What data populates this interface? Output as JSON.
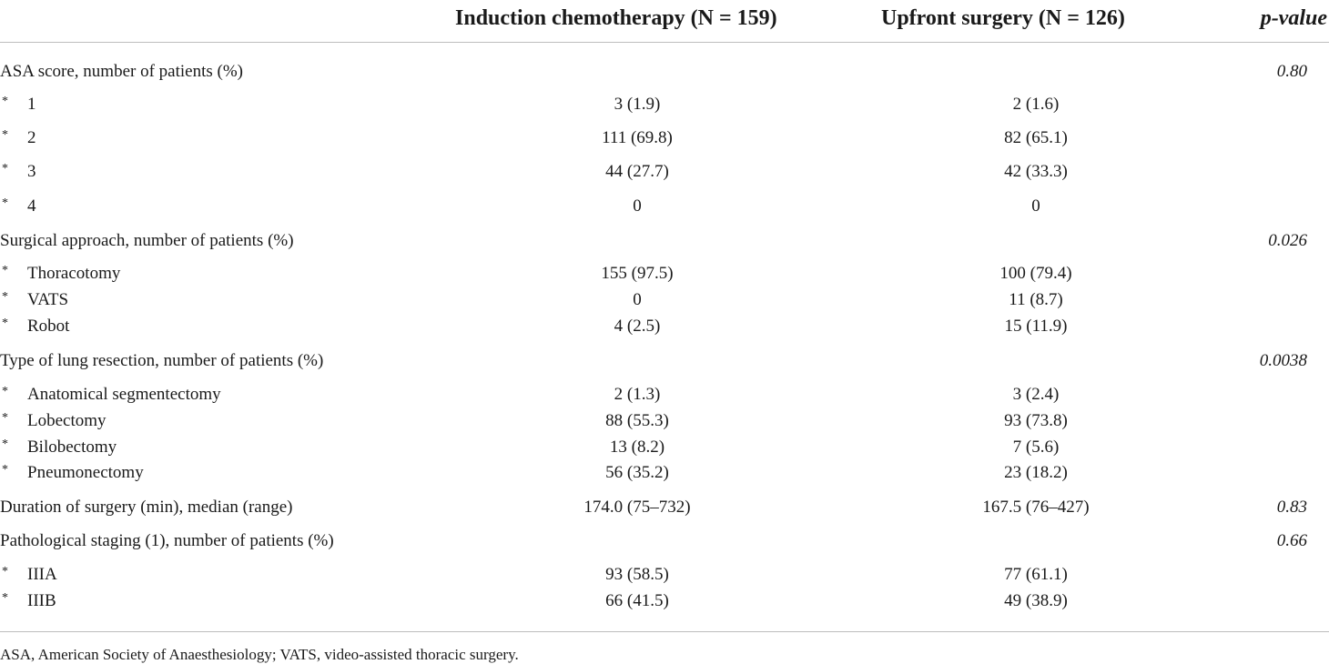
{
  "header": {
    "col1": "Induction chemotherapy (N = 159)",
    "col2": "Upfront surgery (N = 126)",
    "col3": "p-value"
  },
  "bullet": "*",
  "rows": [
    {
      "label": "ASA score, number of patients (%)",
      "p": "0.80"
    },
    {
      "label": "1",
      "v1": "3 (1.9)",
      "v2": "2 (1.6)"
    },
    {
      "label": "2",
      "v1": "111 (69.8)",
      "v2": "82 (65.1)"
    },
    {
      "label": "3",
      "v1": "44 (27.7)",
      "v2": "42 (33.3)"
    },
    {
      "label": "4",
      "v1": "0",
      "v2": "0"
    },
    {
      "label": "Surgical approach, number of patients (%)",
      "p": "0.026"
    },
    {
      "label": "Thoracotomy",
      "v1": "155 (97.5)",
      "v2": "100 (79.4)"
    },
    {
      "label": "VATS",
      "v1": "0",
      "v2": "11 (8.7)"
    },
    {
      "label": "Robot",
      "v1": "4 (2.5)",
      "v2": "15 (11.9)"
    },
    {
      "label": "Type of lung resection, number of patients (%)",
      "p": "0.0038"
    },
    {
      "label": "Anatomical segmentectomy",
      "v1": "2 (1.3)",
      "v2": "3 (2.4)"
    },
    {
      "label": "Lobectomy",
      "v1": "88 (55.3)",
      "v2": "93 (73.8)"
    },
    {
      "label": "Bilobectomy",
      "v1": "13 (8.2)",
      "v2": "7 (5.6)"
    },
    {
      "label": "Pneumonectomy",
      "v1": "56 (35.2)",
      "v2": "23 (18.2)"
    },
    {
      "label": "Duration of surgery (min), median (range)",
      "v1": "174.0 (75–732)",
      "v2": "167.5 (76–427)",
      "p": "0.83"
    },
    {
      "label": "Pathological staging (1), number of patients (%)",
      "p": "0.66"
    },
    {
      "label": "IIIA",
      "v1": "93 (58.5)",
      "v2": "77 (61.1)"
    },
    {
      "label": "IIIB",
      "v1": "66 (41.5)",
      "v2": "49 (38.9)"
    }
  ],
  "footnote": "ASA, American Society of Anaesthesiology; VATS, video-assisted thoracic surgery."
}
